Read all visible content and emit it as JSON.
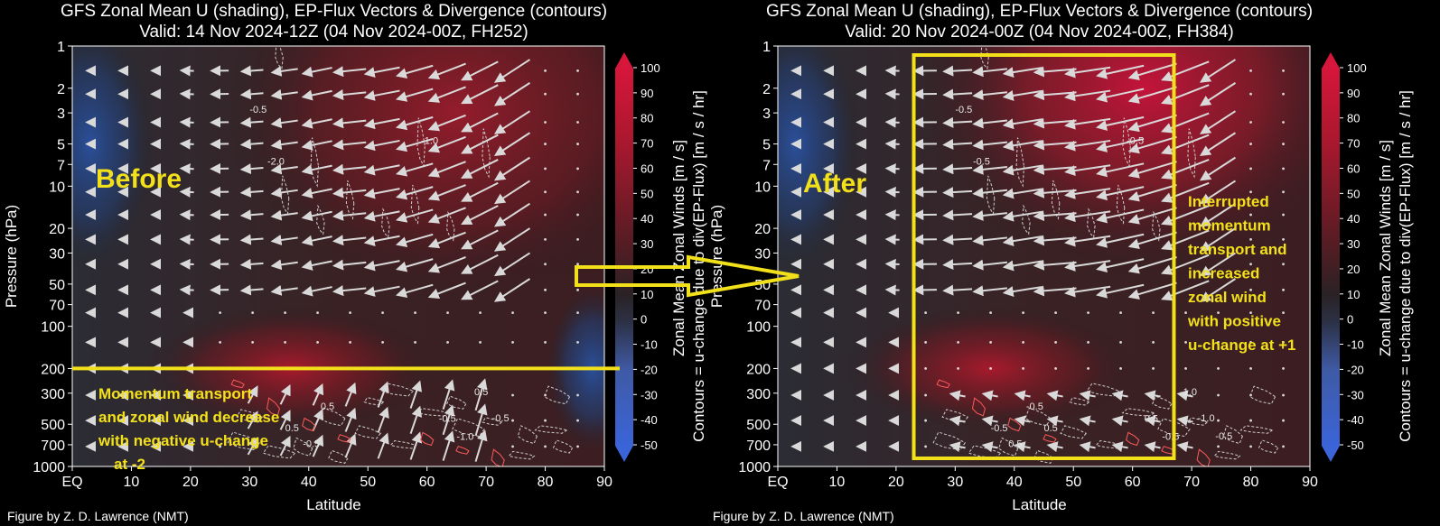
{
  "panels": [
    {
      "title_line1": "GFS Zonal Mean U (shading), EP-Flux Vectors & Divergence (contours)",
      "title_line2": "Valid: 14 Nov 2024-12Z  (04 Nov 2024-00Z, FH252)",
      "label": "Before",
      "note_lines": [
        "Momentum transport",
        "and zonal wind decrease",
        "with negative u-change",
        "at -2"
      ],
      "credit": "Figure by Z. D. Lawrence (NMT)",
      "contour_labels": [
        "-0.5",
        "-1.0",
        "-2.0",
        "-0.5",
        "0.5",
        "-1.0",
        "-0.5",
        "0.5",
        "0.5",
        "-0.5"
      ]
    },
    {
      "title_line1": "GFS Zonal Mean U (shading), EP-Flux Vectors & Divergence (contours)",
      "title_line2": "Valid: 20 Nov 2024-00Z  (04 Nov 2024-00Z, FH384)",
      "label": "After",
      "note_lines": [
        "Interrupted",
        "momentum",
        "transport and",
        "increased",
        "zonal wind",
        "with positive",
        "u-change at +1"
      ],
      "credit": "Figure by Z. D. Lawrence (NMT)",
      "contour_labels": [
        "-0.5",
        "-0.5",
        "-0.5",
        "0.5",
        "-0.5",
        "-0.5",
        "0.5",
        "-1.0",
        "-0.5",
        "-1.0",
        "0.5",
        "-0.5"
      ]
    }
  ],
  "colorbar": {
    "label_main": "Zonal Mean Zonal Winds  [m / s]",
    "label_contours": "Contours = u-change due to div(EP-Flux) [m / s / hr]",
    "ticks": [
      "100",
      "90",
      "80",
      "70",
      "60",
      "50",
      "40",
      "30",
      "20",
      "10",
      "0",
      "-10",
      "-20",
      "-30",
      "-40",
      "-50"
    ]
  },
  "chart_data": [
    {
      "type": "heatmap",
      "title": "GFS Zonal Mean U (shading), EP-Flux Vectors & Divergence (contours)",
      "subtitle": "Valid: 14 Nov 2024-12Z  (04 Nov 2024-00Z, FH252)",
      "xlabel": "Latitude",
      "ylabel": "Pressure (hPa)",
      "x_ticks": [
        "EQ",
        "10",
        "20",
        "30",
        "40",
        "50",
        "60",
        "70",
        "80",
        "90"
      ],
      "y_ticks": [
        "1",
        "2",
        "3",
        "5",
        "7",
        "10",
        "20",
        "30",
        "50",
        "70",
        "100",
        "200",
        "300",
        "500",
        "700",
        "1000"
      ],
      "xlim": [
        0,
        90
      ],
      "ylim": [
        1000,
        1
      ],
      "y_scale": "log",
      "color_range": [
        -50,
        100
      ],
      "max_wind_regions": [
        {
          "lat": 65,
          "pressure": 3,
          "u": 60
        },
        {
          "lat": 37,
          "pressure": 200,
          "u": 45
        }
      ],
      "min_wind_regions": [
        {
          "lat": 3,
          "pressure": 5,
          "u": -30
        },
        {
          "lat": 88,
          "pressure": 200,
          "u": -20
        }
      ],
      "annotation": "Momentum transport and zonal wind decrease with negative u-change at -2",
      "reference_line_pressure": 200
    },
    {
      "type": "heatmap",
      "title": "GFS Zonal Mean U (shading), EP-Flux Vectors & Divergence (contours)",
      "subtitle": "Valid: 20 Nov 2024-00Z  (04 Nov 2024-00Z, FH384)",
      "xlabel": "Latitude",
      "ylabel": "Pressure (hPa)",
      "x_ticks": [
        "EQ",
        "10",
        "20",
        "30",
        "40",
        "50",
        "60",
        "70",
        "80",
        "90"
      ],
      "y_ticks": [
        "1",
        "2",
        "3",
        "5",
        "7",
        "10",
        "20",
        "30",
        "50",
        "70",
        "100",
        "200",
        "300",
        "500",
        "700",
        "1000"
      ],
      "xlim": [
        0,
        90
      ],
      "ylim": [
        1000,
        1
      ],
      "y_scale": "log",
      "color_range": [
        -50,
        100
      ],
      "max_wind_regions": [
        {
          "lat": 62,
          "pressure": 2,
          "u": 75
        },
        {
          "lat": 36,
          "pressure": 200,
          "u": 40
        }
      ],
      "min_wind_regions": [
        {
          "lat": 3,
          "pressure": 5,
          "u": -30
        }
      ],
      "annotation": "Interrupted momentum transport and increased zonal wind with positive u-change at +1",
      "highlight_box": {
        "lat_range": [
          23,
          67
        ],
        "pressure_range": [
          1000,
          1
        ]
      }
    }
  ],
  "colors": {
    "highlight": "#f2e01a",
    "arrow": "#d9d9d9",
    "contour_neg": "#cfcfcf",
    "contour_pos": "#ff5a5a"
  }
}
